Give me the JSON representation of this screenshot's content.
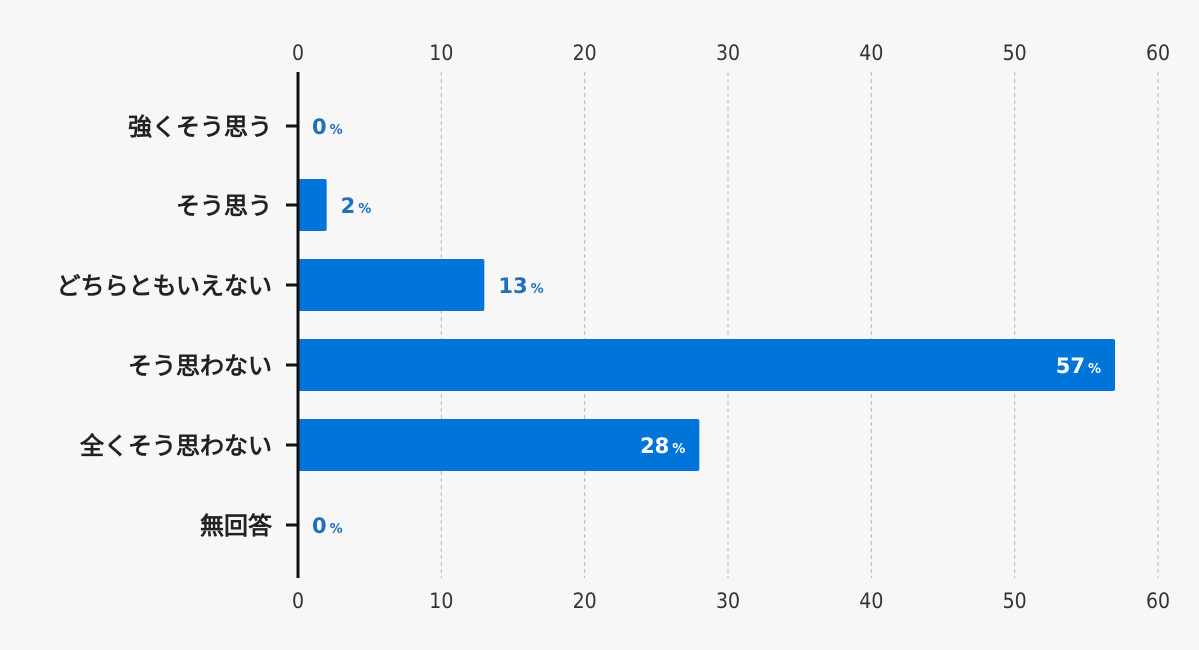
{
  "chart_data": {
    "type": "bar",
    "orientation": "horizontal",
    "categories": [
      "強くそう思う",
      "そう思う",
      "どちらともいえない",
      "そう思わない",
      "全くそう思わない",
      "無回答"
    ],
    "values": [
      0,
      2,
      13,
      57,
      28,
      0
    ],
    "value_suffix": "%",
    "xlim": [
      0,
      60
    ],
    "xticks": [
      "0",
      "10",
      "20",
      "30",
      "40",
      "50",
      "60"
    ],
    "tick_positions": "top-and-bottom",
    "grid": "vertical-dashed",
    "bar_color": "#0075d9",
    "label_color_outside": "#1f6fbf",
    "label_color_inside": "#ffffff"
  }
}
